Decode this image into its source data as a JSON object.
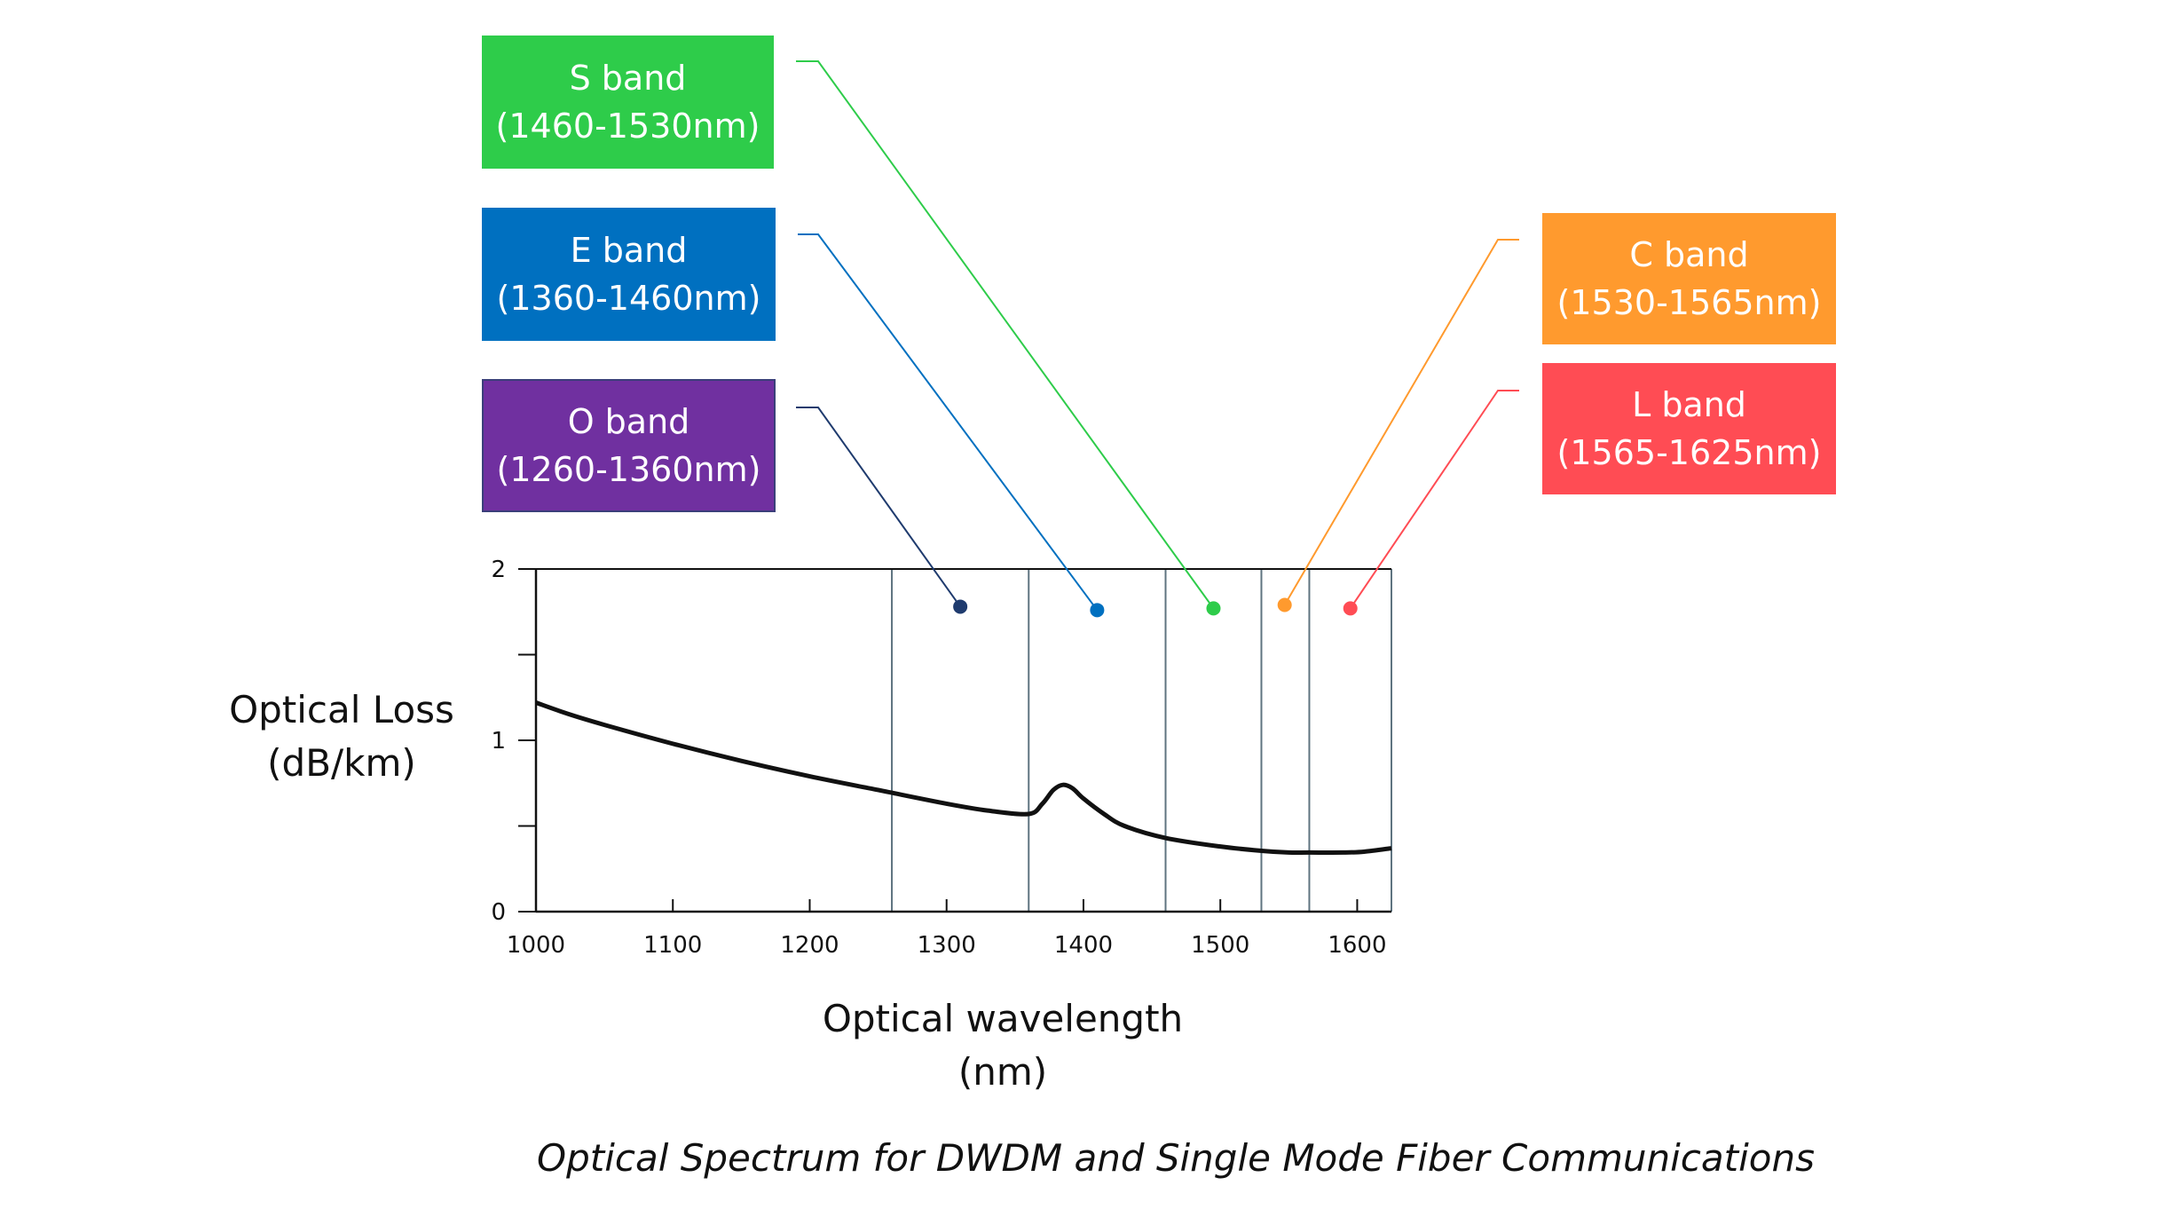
{
  "chart_data": {
    "type": "line",
    "title": "Optical Spectrum for DWDM and Single Mode Fiber Communications",
    "xlabel": "Optical wavelength (nm)",
    "ylabel": "Optical Loss (dB/km)",
    "xlabel_lines": [
      "Optical wavelength",
      "(nm)"
    ],
    "ylabel_lines": [
      "Optical Loss",
      "(dB/km)"
    ],
    "xlim": [
      1000,
      1625
    ],
    "ylim": [
      0,
      2
    ],
    "x_ticks": [
      1000,
      1100,
      1200,
      1300,
      1400,
      1500,
      1600
    ],
    "x_tick_labels": [
      "1000",
      "1100",
      "1200",
      "1300",
      "1400",
      "1500",
      "1600"
    ],
    "y_ticks": [
      0,
      0.5,
      1,
      1.5,
      2
    ],
    "y_tick_labels": [
      "0",
      "",
      "1",
      "",
      "2"
    ],
    "series": [
      {
        "name": "Optical Loss",
        "color": "#111111",
        "x": [
          1000,
          1025,
          1050,
          1100,
          1150,
          1200,
          1250,
          1300,
          1330,
          1360,
          1370,
          1378,
          1385,
          1392,
          1400,
          1415,
          1430,
          1460,
          1500,
          1530,
          1550,
          1565,
          1590,
          1605,
          1625
        ],
        "y": [
          1.22,
          1.15,
          1.09,
          0.98,
          0.88,
          0.79,
          0.71,
          0.63,
          0.59,
          0.57,
          0.63,
          0.71,
          0.74,
          0.72,
          0.66,
          0.57,
          0.5,
          0.43,
          0.38,
          0.355,
          0.345,
          0.345,
          0.345,
          0.35,
          0.37
        ]
      }
    ],
    "band_boundaries": [
      1260,
      1360,
      1460,
      1530,
      1565,
      1625
    ],
    "bands": [
      {
        "name": "O band",
        "range": "(1260-1360nm)",
        "start": 1260,
        "end": 1360,
        "marker_x": 1310,
        "marker_y": 1.78,
        "color": "#7030a0",
        "marker_color": "#1f3b6e",
        "line_color": "#1f3b6e"
      },
      {
        "name": "E band",
        "range": "(1360-1460nm)",
        "start": 1360,
        "end": 1460,
        "marker_x": 1410,
        "marker_y": 1.76,
        "color": "#0070c0",
        "marker_color": "#0070c0",
        "line_color": "#0070c0"
      },
      {
        "name": "S band",
        "range": "(1460-1530nm)",
        "start": 1460,
        "end": 1530,
        "marker_x": 1495,
        "marker_y": 1.77,
        "color": "#2ecc4a",
        "marker_color": "#2ecc4a",
        "line_color": "#2ecc4a"
      },
      {
        "name": "C band",
        "range": "(1530-1565nm)",
        "start": 1530,
        "end": 1565,
        "marker_x": 1547,
        "marker_y": 1.79,
        "color": "#ff9a2e",
        "marker_color": "#ff9a2e",
        "line_color": "#ff9a2e"
      },
      {
        "name": "L band",
        "range": "(1565-1625nm)",
        "start": 1565,
        "end": 1625,
        "marker_x": 1595,
        "marker_y": 1.77,
        "color": "#ff4c54",
        "marker_color": "#ff4c54",
        "line_color": "#ff4c54"
      }
    ]
  }
}
